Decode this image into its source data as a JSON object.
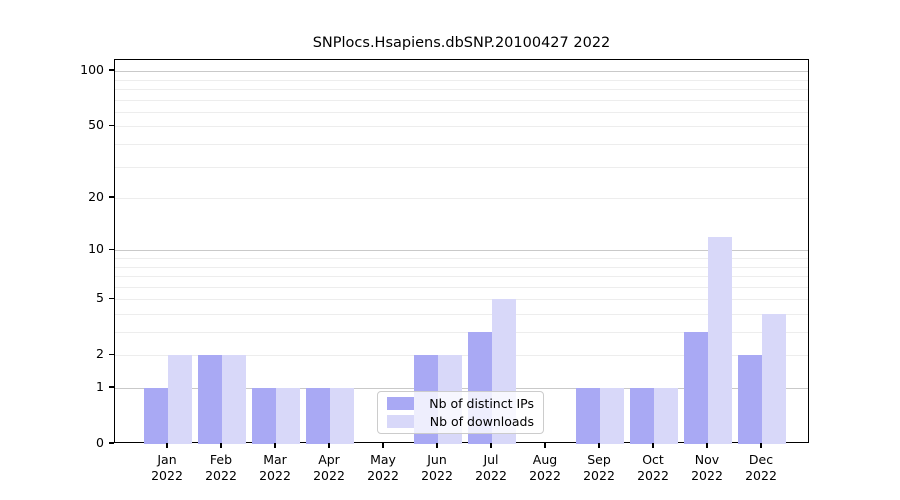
{
  "chart": {
    "title": "SNPlocs.Hsapiens.dbSNP.20100427 2022"
  },
  "legend": {
    "items": [
      {
        "label": "Nb of distinct IPs",
        "color": "#a9a9f4"
      },
      {
        "label": "Nb of downloads",
        "color": "#d8d8f9"
      }
    ]
  },
  "chart_data": {
    "type": "bar",
    "title": "SNPlocs.Hsapiens.dbSNP.20100427 2022",
    "categories": [
      "Jan",
      "Feb",
      "Mar",
      "Apr",
      "May",
      "Jun",
      "Jul",
      "Aug",
      "Sep",
      "Oct",
      "Nov",
      "Dec"
    ],
    "category_year": "2022",
    "series": [
      {
        "name": "Nb of distinct IPs",
        "color": "#a9a9f4",
        "values": [
          1,
          2,
          1,
          1,
          0,
          2,
          3,
          0,
          1,
          1,
          3,
          2
        ]
      },
      {
        "name": "Nb of downloads",
        "color": "#d8d8f9",
        "values": [
          2,
          2,
          1,
          1,
          0,
          2,
          5,
          0,
          1,
          1,
          12,
          4
        ]
      }
    ],
    "xlabel": "",
    "ylabel": "",
    "yscale": "log1p",
    "ylim": [
      0,
      115
    ],
    "yticks": [
      0,
      1,
      2,
      5,
      10,
      20,
      50,
      100
    ],
    "grid": true,
    "grid_major": [
      1,
      10,
      100
    ],
    "grid_minor": [
      2,
      3,
      4,
      5,
      6,
      7,
      8,
      9,
      20,
      30,
      40,
      50,
      60,
      70,
      80,
      90
    ],
    "legend_position": "lower center"
  },
  "colors": {
    "axis": "#000000",
    "grid_major": "#c9c9c9",
    "grid_minor": "#ededed",
    "legend_border": "#cccccc"
  }
}
